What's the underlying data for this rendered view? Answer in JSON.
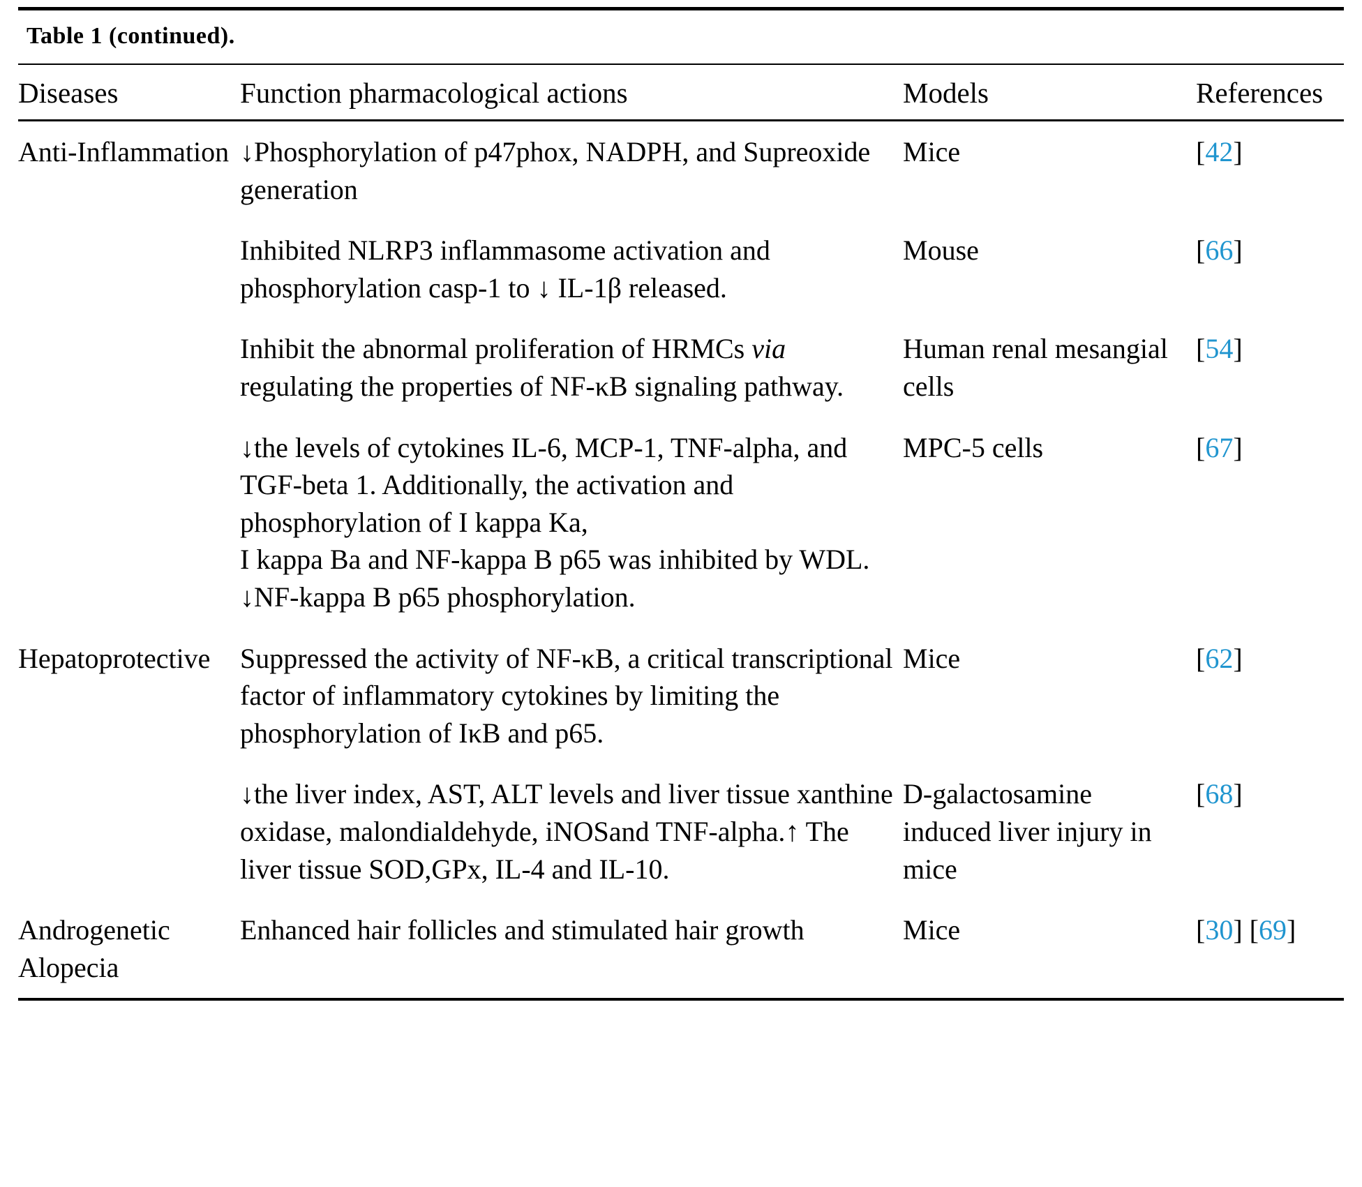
{
  "table": {
    "title": "Table 1 (continued).",
    "columns": [
      "Diseases",
      "Function pharmacological actions",
      "Models",
      "References"
    ],
    "groups": [
      {
        "disease": "Anti-Inflammation",
        "entries": [
          {
            "action": [
              {
                "text": "↓Phosphorylation of p47phox, NADPH, and Supreoxide generation"
              }
            ],
            "model": "Mice",
            "refs": [
              "42"
            ]
          },
          {
            "action": [
              {
                "text": "Inhibited NLRP3 inflammasome activation and phosphorylation casp-1 to ↓ IL-1β released."
              }
            ],
            "model": "Mouse",
            "refs": [
              "66"
            ]
          },
          {
            "action": [
              {
                "text": "Inhibit the abnormal proliferation of HRMCs "
              },
              {
                "text": "via",
                "italic": true
              },
              {
                "text": " regulating the properties of NF-κB signaling pathway."
              }
            ],
            "model": "Human renal mesangial cells",
            "refs": [
              "54"
            ]
          },
          {
            "action": [
              {
                "text": "↓the levels of cytokines IL-6, MCP-1, TNF-alpha, and TGF-beta 1. Additionally, the activation and phosphorylation of I kappa Ka,\nI kappa Ba and NF-kappa B p65 was inhibited by WDL.\n↓NF-kappa B p65 phosphorylation."
              }
            ],
            "model": "MPC-5 cells",
            "refs": [
              "67"
            ]
          }
        ]
      },
      {
        "disease": "Hepatoprotective",
        "entries": [
          {
            "action": [
              {
                "text": "Suppressed the activity of NF-κB, a critical transcriptional factor of inflammatory cytokines by limiting the phosphorylation of IκB and p65."
              }
            ],
            "model": "Mice",
            "refs": [
              "62"
            ]
          },
          {
            "action": [
              {
                "text": "↓the liver index, AST, ALT levels and liver tissue xanthine oxidase, malondialdehyde, iNOSand TNF-alpha.↑ The liver tissue SOD,GPx, IL-4 and IL-10."
              }
            ],
            "model": "D-galactosamine induced liver injury in mice",
            "refs": [
              "68"
            ]
          }
        ]
      },
      {
        "disease": "Androgenetic Alopecia",
        "entries": [
          {
            "action": [
              {
                "text": "Enhanced hair follicles and stimulated hair growth"
              }
            ],
            "model": "Mice",
            "refs": [
              "30",
              "69"
            ]
          }
        ]
      }
    ]
  },
  "colors": {
    "reference": "#2095cf",
    "text": "#000000",
    "rule": "#000000"
  }
}
